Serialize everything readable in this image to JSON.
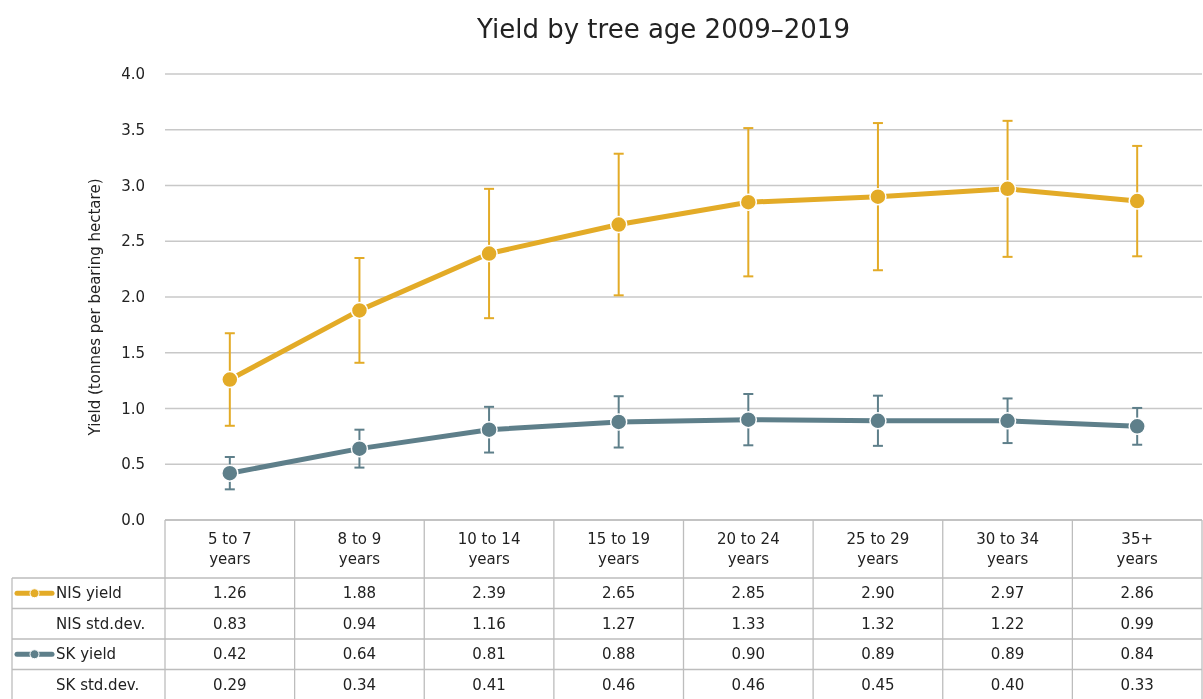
{
  "chart_data": {
    "type": "line",
    "title": "Yield by tree age 2009–2019",
    "ylabel": "Yield (tonnes per bearing hectare)",
    "categories": [
      "5 to 7 years",
      "8 to 9 years",
      "10 to 14 years",
      "15 to 19 years",
      "20 to 24 years",
      "25 to 29 years",
      "30 to 34 years",
      "35+ years"
    ],
    "series": [
      {
        "name": "NIS yield",
        "type": "line",
        "color": "#e3ab27",
        "values": [
          1.26,
          1.88,
          2.39,
          2.65,
          2.85,
          2.9,
          2.97,
          2.86
        ],
        "value_labels": [
          "1.26",
          "1.88",
          "2.39",
          "2.65",
          "2.85",
          "2.90",
          "2.97",
          "2.86"
        ],
        "errors": [
          0.415,
          0.47,
          0.58,
          0.635,
          0.665,
          0.66,
          0.61,
          0.495
        ]
      },
      {
        "name": "SK yield",
        "type": "line",
        "color": "#5e7f8a",
        "values": [
          0.42,
          0.64,
          0.81,
          0.88,
          0.9,
          0.89,
          0.89,
          0.84
        ],
        "value_labels": [
          "0.42",
          "0.64",
          "0.81",
          "0.88",
          "0.90",
          "0.89",
          "0.89",
          "0.84"
        ],
        "errors": [
          0.145,
          0.17,
          0.205,
          0.23,
          0.23,
          0.225,
          0.2,
          0.165
        ]
      }
    ],
    "annotations": [
      "NIS std.dev.",
      "0.83",
      "0.94",
      "1.16",
      "1.27",
      "1.33",
      "1.32",
      "1.22",
      "0.99",
      "SK std.dev.",
      "0.29",
      "0.34",
      "0.41",
      "0.46",
      "0.46",
      "0.45",
      "0.40",
      "0.33"
    ],
    "ylim": [
      0,
      4
    ],
    "yticks": [
      {
        "value": 0,
        "label": "0.0"
      },
      {
        "value": 0.5,
        "label": "0.5"
      },
      {
        "value": 1,
        "label": "1.0"
      },
      {
        "value": 1.5,
        "label": "1.5"
      },
      {
        "value": 2,
        "label": "2.0"
      },
      {
        "value": 2.5,
        "label": "2.5"
      },
      {
        "value": 3,
        "label": "3.0"
      },
      {
        "value": 3.5,
        "label": "3.5"
      },
      {
        "value": 4,
        "label": "4.0"
      }
    ],
    "grid": "y",
    "marker": "circle",
    "line_style": "solid",
    "legend": "bottom left"
  }
}
